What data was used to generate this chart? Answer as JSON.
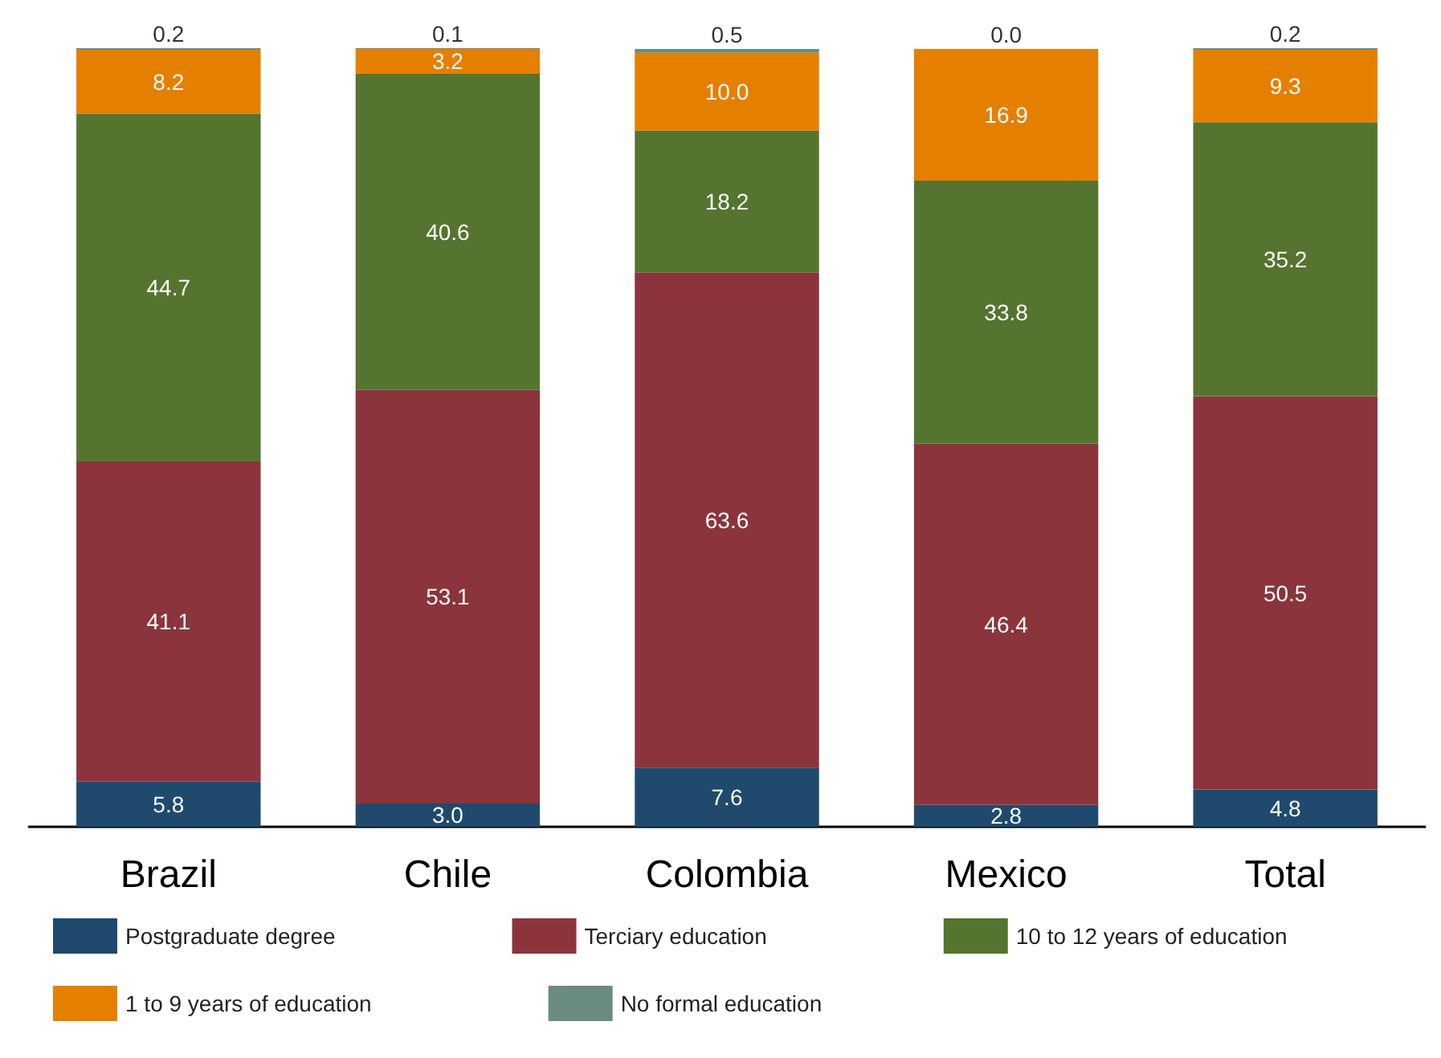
{
  "chart_data": {
    "type": "bar",
    "stacked": true,
    "legend": "bottom",
    "grid": false,
    "tick_labels": "x",
    "ylim": [
      0,
      100
    ],
    "categories": [
      "Brazil",
      "Chile",
      "Colombia",
      "Mexico",
      "Total"
    ],
    "series": [
      {
        "name": "Postgraduate degree",
        "color": "#1f4a6e",
        "values": [
          5.8,
          3.0,
          7.6,
          2.8,
          4.8
        ],
        "value_labels": [
          "5.8",
          "3.0",
          "7.6",
          "2.8",
          "4.8"
        ]
      },
      {
        "name": "Terciary education",
        "color": "#8b343c",
        "values": [
          41.1,
          53.1,
          63.6,
          46.4,
          50.5
        ],
        "value_labels": [
          "41.1",
          "53.1",
          "63.6",
          "46.4",
          "50.5"
        ]
      },
      {
        "name": "10 to 12 years of education",
        "color": "#55742f",
        "values": [
          44.7,
          40.6,
          18.2,
          33.8,
          35.2
        ],
        "value_labels": [
          "44.7",
          "40.6",
          "18.2",
          "33.8",
          "35.2"
        ]
      },
      {
        "name": "1 to 9 years of education",
        "color": "#e57f00",
        "values": [
          8.2,
          3.2,
          10.0,
          16.9,
          9.3
        ],
        "value_labels": [
          "8.2",
          "3.2",
          "10.0",
          "16.9",
          "9.3"
        ]
      },
      {
        "name": "No formal education",
        "color": "#6a8c7e",
        "values": [
          0.2,
          0.1,
          0.5,
          0.0,
          0.2
        ],
        "value_labels": [
          "0.2",
          "0.1",
          "0.5",
          "0.0",
          "0.2"
        ]
      }
    ]
  }
}
